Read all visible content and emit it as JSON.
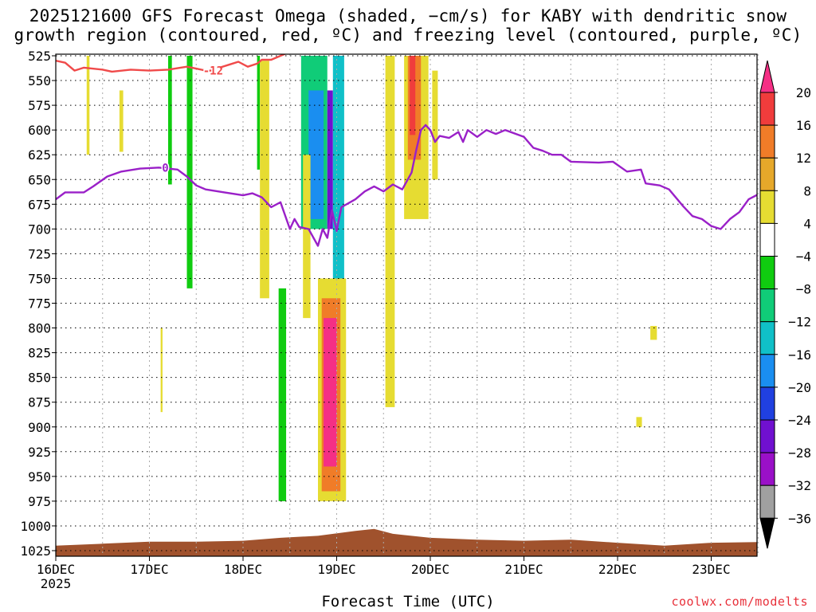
{
  "title_line1": "2025121600 GFS Forecast Omega (shaded, −cm/s) for KABY with dendritic snow",
  "title_line2": "growth region (contoured, red, ºC) and freezing level (contoured, purple, ºC)",
  "xlabel": "Forecast Time (UTC)",
  "credit": "coolwx.com/modelts",
  "chart_data": {
    "type": "heatmap",
    "y_axis": {
      "label": "",
      "ticks": [
        525,
        550,
        575,
        600,
        625,
        650,
        675,
        700,
        725,
        750,
        775,
        800,
        825,
        850,
        875,
        900,
        925,
        950,
        975,
        1000,
        1025
      ],
      "range": [
        525,
        1030
      ],
      "inverted": true
    },
    "x_axis": {
      "label": "Forecast Time (UTC)",
      "range_days": [
        0,
        7.7
      ],
      "ticks": [
        {
          "day": 0,
          "label": "16DEC",
          "sublabel": "2025"
        },
        {
          "day": 1,
          "label": "17DEC"
        },
        {
          "day": 2,
          "label": "18DEC"
        },
        {
          "day": 3,
          "label": "19DEC"
        },
        {
          "day": 4,
          "label": "20DEC"
        },
        {
          "day": 5,
          "label": "21DEC"
        },
        {
          "day": 6,
          "label": "22DEC"
        },
        {
          "day": 7,
          "label": "23DEC"
        }
      ]
    },
    "grid": true,
    "colorbar": {
      "labels": [
        "20",
        "16",
        "12",
        "8",
        "4",
        "−4",
        "−8",
        "−12",
        "−16",
        "−20",
        "−24",
        "−28",
        "−32",
        "−36"
      ],
      "colors": [
        "#f52f85",
        "#f03c3c",
        "#f07c28",
        "#e6a82a",
        "#e6dc32",
        "#ffffff",
        "#10cc10",
        "#10cc78",
        "#10c0c8",
        "#1a8ef0",
        "#2040e0",
        "#7010d0",
        "#9a10c8",
        "#a0a0a0",
        "#000000"
      ]
    },
    "contours": [
      {
        "name": "-12",
        "color": "#f04a4a",
        "label_day": 1.68,
        "points": [
          [
            0,
            530
          ],
          [
            0.1,
            532
          ],
          [
            0.2,
            540
          ],
          [
            0.3,
            537
          ],
          [
            0.5,
            539
          ],
          [
            0.6,
            541
          ],
          [
            0.8,
            539
          ],
          [
            1.0,
            540
          ],
          [
            1.2,
            539
          ],
          [
            1.4,
            536
          ],
          [
            1.5,
            538
          ],
          [
            1.6,
            540
          ],
          [
            1.7,
            540
          ]
        ]
      },
      {
        "name": "-12",
        "color": "#f04a4a",
        "points": [
          [
            1.75,
            537
          ],
          [
            1.85,
            534
          ],
          [
            1.95,
            531
          ],
          [
            2.05,
            536
          ],
          [
            2.15,
            533
          ],
          [
            2.2,
            529
          ],
          [
            2.3,
            529
          ],
          [
            2.45,
            523
          ]
        ]
      },
      {
        "name": "0",
        "color": "#9a20c8",
        "label_day": 1.17,
        "points": [
          [
            0,
            670
          ],
          [
            0.1,
            663
          ],
          [
            0.3,
            663
          ],
          [
            0.4,
            657
          ],
          [
            0.55,
            647
          ],
          [
            0.7,
            642
          ],
          [
            0.9,
            639
          ],
          [
            1.1,
            638
          ],
          [
            1.3,
            640
          ],
          [
            1.4,
            647
          ],
          [
            1.5,
            656
          ],
          [
            1.6,
            660
          ],
          [
            1.8,
            663
          ],
          [
            2.0,
            666
          ],
          [
            2.1,
            664
          ],
          [
            2.2,
            668
          ],
          [
            2.3,
            678
          ],
          [
            2.4,
            673
          ],
          [
            2.5,
            700
          ],
          [
            2.55,
            690
          ],
          [
            2.6,
            698
          ],
          [
            2.7,
            700
          ],
          [
            2.8,
            717
          ],
          [
            2.85,
            700
          ],
          [
            2.9,
            709
          ],
          [
            2.95,
            681
          ],
          [
            3.0,
            702
          ],
          [
            3.05,
            678
          ],
          [
            3.2,
            670
          ],
          [
            3.3,
            662
          ],
          [
            3.4,
            657
          ],
          [
            3.5,
            662
          ],
          [
            3.6,
            655
          ],
          [
            3.7,
            660
          ],
          [
            3.8,
            643
          ],
          [
            3.85,
            620
          ],
          [
            3.9,
            600
          ],
          [
            3.95,
            595
          ],
          [
            4.0,
            600
          ],
          [
            4.05,
            612
          ],
          [
            4.1,
            606
          ],
          [
            4.2,
            608
          ],
          [
            4.3,
            602
          ],
          [
            4.35,
            612
          ],
          [
            4.4,
            600
          ],
          [
            4.5,
            607
          ],
          [
            4.6,
            600
          ],
          [
            4.7,
            604
          ],
          [
            4.8,
            600
          ],
          [
            5.0,
            607
          ],
          [
            5.1,
            618
          ],
          [
            5.2,
            621
          ],
          [
            5.3,
            625
          ],
          [
            5.4,
            625
          ],
          [
            5.5,
            632
          ],
          [
            5.8,
            633
          ],
          [
            5.95,
            632
          ],
          [
            6.1,
            642
          ],
          [
            6.25,
            640
          ],
          [
            6.3,
            654
          ],
          [
            6.45,
            656
          ],
          [
            6.55,
            660
          ],
          [
            6.7,
            677
          ],
          [
            6.8,
            687
          ],
          [
            6.9,
            690
          ],
          [
            7.0,
            697
          ],
          [
            7.1,
            700
          ],
          [
            7.2,
            690
          ],
          [
            7.3,
            683
          ],
          [
            7.4,
            670
          ],
          [
            7.5,
            665
          ],
          [
            7.6,
            663
          ],
          [
            7.7,
            663
          ]
        ]
      }
    ],
    "shaded_regions": [
      {
        "value": 6,
        "t0": 0.33,
        "t1": 0.36,
        "p0": 525,
        "p1": 625
      },
      {
        "value": 6,
        "t0": 0.68,
        "t1": 0.72,
        "p0": 560,
        "p1": 622
      },
      {
        "value": -6,
        "t0": 1.2,
        "t1": 1.24,
        "p0": 525,
        "p1": 655
      },
      {
        "value": -6,
        "t0": 1.4,
        "t1": 1.46,
        "p0": 525,
        "p1": 760
      },
      {
        "value": 6,
        "t0": 1.12,
        "t1": 1.14,
        "p0": 800,
        "p1": 885
      },
      {
        "value": -6,
        "t0": 2.15,
        "t1": 2.18,
        "p0": 525,
        "p1": 640
      },
      {
        "value": 6,
        "t0": 2.18,
        "t1": 2.28,
        "p0": 530,
        "p1": 770
      },
      {
        "value": -6,
        "t0": 2.38,
        "t1": 2.46,
        "p0": 760,
        "p1": 975
      },
      {
        "value": -10,
        "t0": 2.62,
        "t1": 2.9,
        "p0": 525,
        "p1": 700
      },
      {
        "value": -18,
        "t0": 2.7,
        "t1": 2.86,
        "p0": 560,
        "p1": 690
      },
      {
        "value": -26,
        "t0": 2.9,
        "t1": 2.96,
        "p0": 560,
        "p1": 700
      },
      {
        "value": -14,
        "t0": 2.96,
        "t1": 3.08,
        "p0": 525,
        "p1": 765
      },
      {
        "value": 6,
        "t0": 2.64,
        "t1": 2.72,
        "p0": 625,
        "p1": 790
      },
      {
        "value": 6,
        "t0": 2.8,
        "t1": 3.1,
        "p0": 750,
        "p1": 975
      },
      {
        "value": 14,
        "t0": 2.84,
        "t1": 3.04,
        "p0": 770,
        "p1": 965
      },
      {
        "value": 22,
        "t0": 2.86,
        "t1": 3.0,
        "p0": 790,
        "p1": 940
      },
      {
        "value": 6,
        "t0": 3.52,
        "t1": 3.62,
        "p0": 525,
        "p1": 880
      },
      {
        "value": 6,
        "t0": 3.72,
        "t1": 3.98,
        "p0": 525,
        "p1": 690
      },
      {
        "value": 14,
        "t0": 3.76,
        "t1": 3.9,
        "p0": 525,
        "p1": 630
      },
      {
        "value": 18,
        "t0": 3.78,
        "t1": 3.84,
        "p0": 525,
        "p1": 605
      },
      {
        "value": 6,
        "t0": 4.02,
        "t1": 4.08,
        "p0": 540,
        "p1": 650
      },
      {
        "value": 6,
        "t0": 6.35,
        "t1": 6.42,
        "p0": 798,
        "p1": 812
      },
      {
        "value": 6,
        "t0": 6.2,
        "t1": 6.26,
        "p0": 890,
        "p1": 900
      }
    ],
    "terrain_surface": [
      [
        0,
        1020
      ],
      [
        0.5,
        1018
      ],
      [
        1.0,
        1016
      ],
      [
        1.5,
        1016
      ],
      [
        2.0,
        1015
      ],
      [
        2.4,
        1012
      ],
      [
        2.8,
        1010
      ],
      [
        3.2,
        1005
      ],
      [
        3.4,
        1003
      ],
      [
        3.6,
        1008
      ],
      [
        4.0,
        1012
      ],
      [
        4.5,
        1014
      ],
      [
        5.0,
        1015
      ],
      [
        5.5,
        1014
      ],
      [
        6.0,
        1017
      ],
      [
        6.5,
        1020
      ],
      [
        7.0,
        1017
      ],
      [
        7.7,
        1016
      ]
    ]
  }
}
